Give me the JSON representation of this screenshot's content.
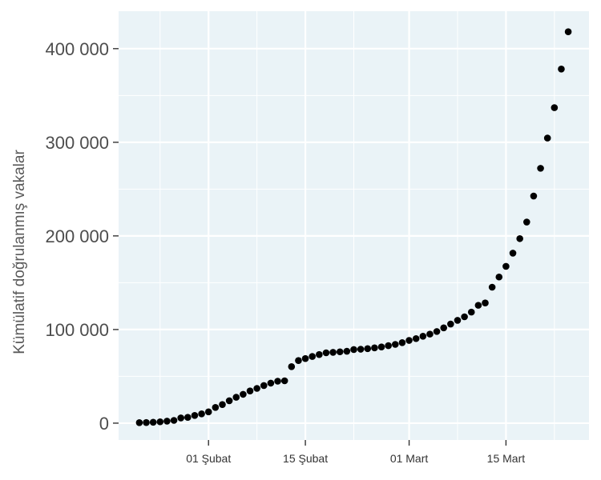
{
  "chart_data": {
    "type": "scatter",
    "title": "",
    "xlabel": "",
    "ylabel": "Kümülatif doğrulanmış vakalar",
    "x_tick_labels": [
      "01 Şubat",
      "15 Şubat",
      "01 Mart",
      "15 Mart"
    ],
    "x_tick_dates": [
      "2020-02-01",
      "2020-02-15",
      "2020-03-01",
      "2020-03-15"
    ],
    "y_tick_labels": [
      "0",
      "100 000",
      "200 000",
      "300 000",
      "400 000"
    ],
    "y_ticks": [
      0,
      100000,
      200000,
      300000,
      400000
    ],
    "xlim": [
      "2020-01-19",
      "2020-03-27"
    ],
    "ylim": [
      -18000,
      440000
    ],
    "grid": true,
    "background": "#eaf3f7",
    "point_color": "#000000",
    "series": [
      {
        "points": [
          [
            "2020-01-22",
            555
          ],
          [
            "2020-01-23",
            654
          ],
          [
            "2020-01-24",
            941
          ],
          [
            "2020-01-25",
            1434
          ],
          [
            "2020-01-26",
            2118
          ],
          [
            "2020-01-27",
            2927
          ],
          [
            "2020-01-28",
            5578
          ],
          [
            "2020-01-29",
            6166
          ],
          [
            "2020-01-30",
            8234
          ],
          [
            "2020-01-31",
            9927
          ],
          [
            "2020-02-01",
            12038
          ],
          [
            "2020-02-02",
            16787
          ],
          [
            "2020-02-03",
            19881
          ],
          [
            "2020-02-04",
            23892
          ],
          [
            "2020-02-05",
            27635
          ],
          [
            "2020-02-06",
            30794
          ],
          [
            "2020-02-07",
            34391
          ],
          [
            "2020-02-08",
            37120
          ],
          [
            "2020-02-09",
            40150
          ],
          [
            "2020-02-10",
            42762
          ],
          [
            "2020-02-11",
            44802
          ],
          [
            "2020-02-12",
            45221
          ],
          [
            "2020-02-13",
            60368
          ],
          [
            "2020-02-14",
            66885
          ],
          [
            "2020-02-15",
            69030
          ],
          [
            "2020-02-16",
            71224
          ],
          [
            "2020-02-17",
            73258
          ],
          [
            "2020-02-18",
            75136
          ],
          [
            "2020-02-19",
            75639
          ],
          [
            "2020-02-20",
            76197
          ],
          [
            "2020-02-21",
            76823
          ],
          [
            "2020-02-22",
            78579
          ],
          [
            "2020-02-23",
            78965
          ],
          [
            "2020-02-24",
            79568
          ],
          [
            "2020-02-25",
            80413
          ],
          [
            "2020-02-26",
            81395
          ],
          [
            "2020-02-27",
            82754
          ],
          [
            "2020-02-28",
            84120
          ],
          [
            "2020-02-29",
            86011
          ],
          [
            "2020-03-01",
            88369
          ],
          [
            "2020-03-02",
            90306
          ],
          [
            "2020-03-03",
            92840
          ],
          [
            "2020-03-04",
            95120
          ],
          [
            "2020-03-05",
            97886
          ],
          [
            "2020-03-06",
            101801
          ],
          [
            "2020-03-07",
            105847
          ],
          [
            "2020-03-08",
            109821
          ],
          [
            "2020-03-09",
            113590
          ],
          [
            "2020-03-10",
            118620
          ],
          [
            "2020-03-11",
            125875
          ],
          [
            "2020-03-12",
            128352
          ],
          [
            "2020-03-13",
            145205
          ],
          [
            "2020-03-14",
            156101
          ],
          [
            "2020-03-15",
            167454
          ],
          [
            "2020-03-16",
            181574
          ],
          [
            "2020-03-17",
            197102
          ],
          [
            "2020-03-18",
            214821
          ],
          [
            "2020-03-19",
            242570
          ],
          [
            "2020-03-20",
            272208
          ],
          [
            "2020-03-21",
            304507
          ],
          [
            "2020-03-22",
            336953
          ],
          [
            "2020-03-23",
            378231
          ],
          [
            "2020-03-24",
            418045
          ]
        ]
      }
    ]
  }
}
